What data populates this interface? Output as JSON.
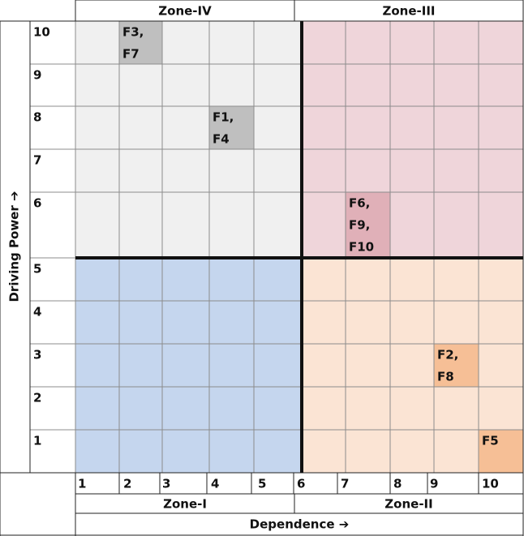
{
  "top_zones": [
    "Zone-IV",
    "Zone-III"
  ],
  "bottom_zones": [
    "Zone-I",
    "Zone-II"
  ],
  "y_axis": {
    "title": "Driving Power ➔",
    "labels": [
      "10",
      "9",
      "8",
      "7",
      "6",
      "5",
      "4",
      "3",
      "2",
      "1"
    ]
  },
  "x_axis": {
    "title": "Dependence ➔",
    "labels": [
      "1",
      "2",
      "3",
      "4",
      "5",
      "6",
      "7",
      "8",
      "9",
      "10"
    ]
  },
  "cells": [
    {
      "dependence": 2,
      "driving_power": 10,
      "lines": [
        "F3,",
        "F7"
      ]
    },
    {
      "dependence": 4,
      "driving_power": 8,
      "lines": [
        "F1,",
        "F4"
      ]
    },
    {
      "dependence": 7,
      "driving_power": 6,
      "lines": [
        "F6,",
        "F9,",
        "F10"
      ]
    },
    {
      "dependence": 9,
      "driving_power": 3,
      "lines": [
        "F2,",
        "F8"
      ]
    },
    {
      "dependence": 10,
      "driving_power": 1,
      "lines": [
        "F5"
      ]
    }
  ]
}
